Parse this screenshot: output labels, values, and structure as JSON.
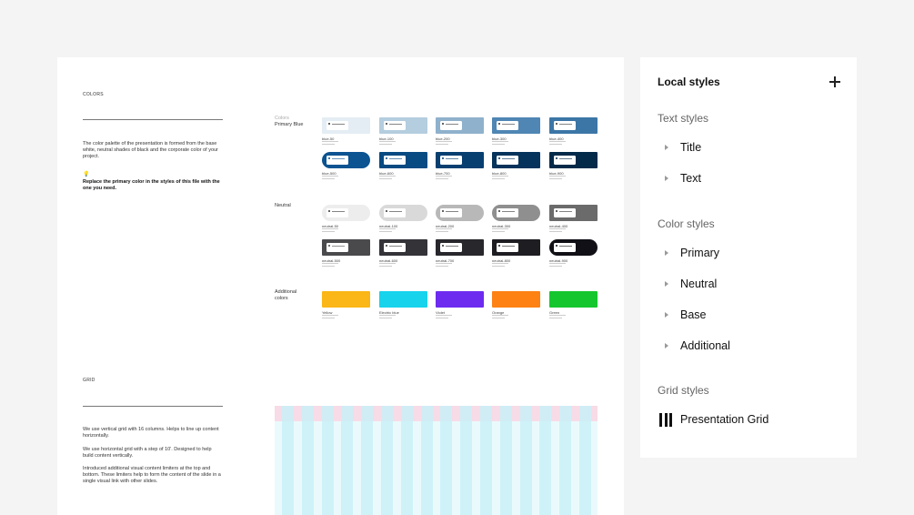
{
  "document": {
    "colors_section": {
      "label": "COLORS",
      "description": "The color palette of the presentation is formed from the base white, neutral shades of black and the corporate color of your project.",
      "note": "Replace the primary color in the styles of this file with the one you need.",
      "bulb_icon": "lightbulb-icon"
    },
    "grid_section": {
      "label": "GRID",
      "paragraphs": [
        "We use vertical grid with 16 columns. Helps to line up content horizontally.",
        "We use horizontal grid with a step of 10'. Designed to help build content vertically.",
        "Introduced additional visual content limiters at the top and bottom. These limiters help to form the content of the slide in a single visual link with other slides."
      ]
    },
    "color_groups": [
      {
        "label_muted": "Colors",
        "label": "Primary Blue",
        "rows": [
          [
            {
              "name": "blue-50",
              "color": "#e4edf4",
              "chip": "#ffffff",
              "ink": "#333333"
            },
            {
              "name": "blue-100",
              "color": "#b4cddf",
              "chip": "#ffffff",
              "ink": "#333333"
            },
            {
              "name": "blue-200",
              "color": "#8fb1cc",
              "chip": "#ffffff",
              "ink": "#333333"
            },
            {
              "name": "blue-300",
              "color": "#4f86b4",
              "chip": "#ffffff",
              "ink": "#333333"
            },
            {
              "name": "blue-400",
              "color": "#3c76a6",
              "chip": "#ffffff",
              "ink": "#333333"
            }
          ],
          [
            {
              "name": "blue-500",
              "color": "#0b5391",
              "chip": "#ffffff",
              "ink": "#0b5391",
              "pill": true
            },
            {
              "name": "blue-600",
              "color": "#084a82",
              "chip": "#ffffff",
              "ink": "#084a82"
            },
            {
              "name": "blue-700",
              "color": "#073f70",
              "chip": "#ffffff",
              "ink": "#073f70"
            },
            {
              "name": "blue-800",
              "color": "#05335b",
              "chip": "#ffffff",
              "ink": "#05335b"
            },
            {
              "name": "blue-900",
              "color": "#042a4a",
              "chip": "#ffffff",
              "ink": "#042a4a"
            }
          ]
        ]
      },
      {
        "label_muted": "",
        "label": "Neutral",
        "rows": [
          [
            {
              "name": "neutral-50",
              "color": "#ededed",
              "chip": "#ffffff",
              "ink": "#333333",
              "pill": true
            },
            {
              "name": "neutral-100",
              "color": "#d9d9d9",
              "chip": "#ffffff",
              "ink": "#333333",
              "pill": true
            },
            {
              "name": "neutral-200",
              "color": "#b8b8b8",
              "chip": "#ffffff",
              "ink": "#333333",
              "pill": true
            },
            {
              "name": "neutral-300",
              "color": "#8f8f8f",
              "chip": "#ffffff",
              "ink": "#333333",
              "pill": true
            },
            {
              "name": "neutral-400",
              "color": "#6b6b6b",
              "chip": "#ffffff",
              "ink": "#333333"
            }
          ],
          [
            {
              "name": "neutral-500",
              "color": "#4a4a4d",
              "chip": "#ffffff",
              "ink": "#4a4a4d"
            },
            {
              "name": "neutral-600",
              "color": "#333338",
              "chip": "#ffffff",
              "ink": "#333338"
            },
            {
              "name": "neutral-700",
              "color": "#27272c",
              "chip": "#ffffff",
              "ink": "#27272c"
            },
            {
              "name": "neutral-800",
              "color": "#1d1d22",
              "chip": "#ffffff",
              "ink": "#1d1d22"
            },
            {
              "name": "neutral-900",
              "color": "#101016",
              "chip": "#ffffff",
              "ink": "#101016",
              "pill": true
            }
          ]
        ]
      },
      {
        "label_muted": "",
        "label": "Additional colors",
        "rows": [
          [
            {
              "name": "Yellow",
              "color": "#fbb617",
              "plain": true
            },
            {
              "name": "Electric blue",
              "color": "#17d3ec",
              "plain": true
            },
            {
              "name": "Violet",
              "color": "#6d2bf0",
              "plain": true
            },
            {
              "name": "Orange",
              "color": "#fd8113",
              "plain": true
            },
            {
              "name": "Green",
              "color": "#16c62f",
              "plain": true
            }
          ]
        ]
      }
    ]
  },
  "panel": {
    "title": "Local styles",
    "add_icon": "plus-icon",
    "sections": [
      {
        "heading": "Text styles",
        "items": [
          "Title",
          "Text"
        ]
      },
      {
        "heading": "Color styles",
        "items": [
          "Primary",
          "Neutral",
          "Base",
          "Additional"
        ]
      },
      {
        "heading": "Grid styles",
        "items": [
          "Presentation Grid"
        ],
        "grid": true
      }
    ]
  }
}
